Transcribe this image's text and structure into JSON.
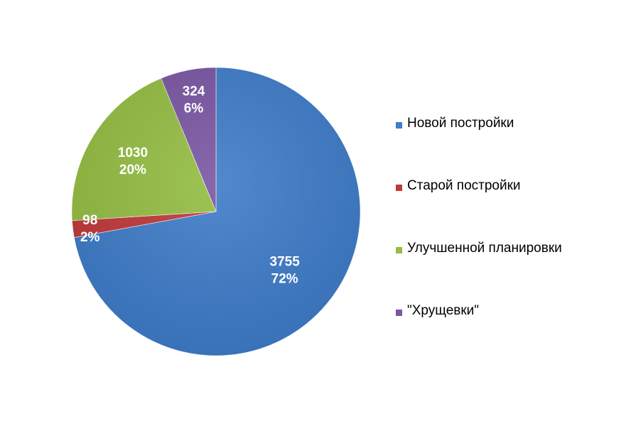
{
  "chart_data": {
    "type": "pie",
    "title": "",
    "slices": [
      {
        "name": "Новой постройки",
        "value": 3755,
        "percent_label": "72%",
        "value_label": "3755",
        "color": "#3f7cc9"
      },
      {
        "name": "Старой постройки",
        "value": 98,
        "percent_label": "2%",
        "value_label": "98",
        "color": "#c0393a"
      },
      {
        "name": "Улучшенной планировки",
        "value": 1030,
        "percent_label": "20%",
        "value_label": "1030",
        "color": "#94bd43"
      },
      {
        "name": "\"Хрущевки\"",
        "value": 324,
        "percent_label": "6%",
        "value_label": "324",
        "color": "#7a57a3"
      }
    ],
    "legend_position": "right",
    "start_angle": "12 o'clock",
    "direction": "clockwise"
  }
}
